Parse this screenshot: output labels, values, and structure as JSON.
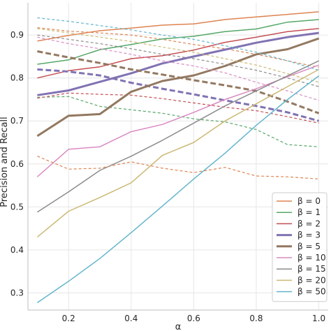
{
  "chart_data": {
    "type": "line",
    "xlabel": "α",
    "ylabel": "Precision and Recall",
    "xlim": [
      0.07,
      1.03
    ],
    "ylim": [
      0.26,
      0.975
    ],
    "xticks": [
      0.2,
      0.4,
      0.6,
      0.8,
      1.0
    ],
    "xtick_labels": [
      "0.2",
      "0.4",
      "0.6",
      "0.8",
      "1.0"
    ],
    "yticks": [
      0.3,
      0.4,
      0.5,
      0.6,
      0.7,
      0.8,
      0.9
    ],
    "ytick_labels": [
      "0.3",
      "0.4",
      "0.5",
      "0.6",
      "0.7",
      "0.8",
      "0.9"
    ],
    "grid": true,
    "legend_position": "lower-right",
    "legend_line_style": "solid",
    "x": [
      0.1,
      0.2,
      0.3,
      0.4,
      0.5,
      0.6,
      0.7,
      0.8,
      0.9,
      1.0
    ],
    "series": [
      {
        "name": "β = 0",
        "color": "#dd8452",
        "width": 1.5,
        "style": "solid",
        "values": [
          0.886,
          0.899,
          0.91,
          0.916,
          0.923,
          0.926,
          0.936,
          0.942,
          0.948,
          0.954
        ]
      },
      {
        "name": "β = 0",
        "color": "#dd8452",
        "width": 1.2,
        "style": "dashed",
        "in_legend": false,
        "values": [
          0.917,
          0.909,
          0.905,
          0.9,
          0.89,
          0.878,
          0.868,
          0.855,
          0.84,
          0.825
        ]
      },
      {
        "name": "β = 1",
        "color": "#55a868",
        "width": 1.5,
        "style": "solid",
        "values": [
          0.832,
          0.842,
          0.866,
          0.878,
          0.891,
          0.897,
          0.908,
          0.914,
          0.93,
          0.936
        ]
      },
      {
        "name": "β = 1",
        "color": "#55a868",
        "width": 1.2,
        "style": "dashed",
        "in_legend": false,
        "values": [
          0.755,
          0.757,
          0.734,
          0.726,
          0.718,
          0.705,
          0.698,
          0.68,
          0.645,
          0.64
        ]
      },
      {
        "name": "β = 2",
        "color": "#c44e52",
        "width": 1.5,
        "style": "solid",
        "values": [
          0.8,
          0.817,
          0.826,
          0.845,
          0.852,
          0.865,
          0.883,
          0.895,
          0.908,
          0.915
        ]
      },
      {
        "name": "β = 2",
        "color": "#c44e52",
        "width": 1.2,
        "style": "dashed",
        "in_legend": false,
        "values": [
          0.753,
          0.765,
          0.762,
          0.76,
          0.752,
          0.742,
          0.732,
          0.724,
          0.71,
          0.695
        ]
      },
      {
        "name": "β = 3",
        "color": "#8172b3",
        "width": 3,
        "style": "solid",
        "values": [
          0.76,
          0.771,
          0.791,
          0.811,
          0.834,
          0.85,
          0.866,
          0.882,
          0.895,
          0.905
        ]
      },
      {
        "name": "β = 3",
        "color": "#8172b3",
        "width": 3,
        "style": "dashed",
        "in_legend": false,
        "values": [
          0.82,
          0.815,
          0.806,
          0.789,
          0.775,
          0.762,
          0.748,
          0.735,
          0.72,
          0.7
        ]
      },
      {
        "name": "β = 5",
        "color": "#937860",
        "width": 3,
        "style": "solid",
        "values": [
          0.665,
          0.712,
          0.716,
          0.768,
          0.793,
          0.806,
          0.828,
          0.855,
          0.867,
          0.892
        ]
      },
      {
        "name": "β = 5",
        "color": "#937860",
        "width": 3,
        "style": "dashed",
        "in_legend": false,
        "values": [
          0.862,
          0.848,
          0.835,
          0.82,
          0.808,
          0.795,
          0.783,
          0.77,
          0.745,
          0.718
        ]
      },
      {
        "name": "β = 10",
        "color": "#da8bc3",
        "width": 1.5,
        "style": "solid",
        "values": [
          0.57,
          0.634,
          0.64,
          0.675,
          0.692,
          0.72,
          0.75,
          0.775,
          0.803,
          0.83
        ]
      },
      {
        "name": "β = 10",
        "color": "#da8bc3",
        "width": 1.2,
        "style": "dashed",
        "in_legend": false,
        "values": [
          0.895,
          0.88,
          0.868,
          0.855,
          0.84,
          0.828,
          0.812,
          0.79,
          0.77,
          0.748
        ]
      },
      {
        "name": "β = 15",
        "color": "#8c8c8c",
        "width": 1.5,
        "style": "solid",
        "values": [
          0.488,
          0.535,
          0.585,
          0.618,
          0.655,
          0.695,
          0.735,
          0.77,
          0.805,
          0.84
        ]
      },
      {
        "name": "β = 15",
        "color": "#8c8c8c",
        "width": 1.2,
        "style": "dashed",
        "in_legend": false,
        "values": [
          0.9,
          0.89,
          0.88,
          0.868,
          0.855,
          0.845,
          0.832,
          0.818,
          0.8,
          0.78
        ]
      },
      {
        "name": "β = 20",
        "color": "#ccb974",
        "width": 1.5,
        "style": "solid",
        "values": [
          0.43,
          0.49,
          0.522,
          0.556,
          0.62,
          0.65,
          0.7,
          0.74,
          0.78,
          0.82
        ]
      },
      {
        "name": "β = 20",
        "color": "#ccb974",
        "width": 1.2,
        "style": "dashed",
        "in_legend": false,
        "values": [
          0.915,
          0.905,
          0.895,
          0.885,
          0.872,
          0.86,
          0.845,
          0.83,
          0.81,
          0.79
        ]
      },
      {
        "name": "β = 50",
        "color": "#64b5cd",
        "width": 1.5,
        "style": "solid",
        "values": [
          0.277,
          0.327,
          0.38,
          0.44,
          0.502,
          0.565,
          0.625,
          0.69,
          0.75,
          0.805
        ]
      },
      {
        "name": "β = 50",
        "color": "#64b5cd",
        "width": 1.2,
        "style": "dashed",
        "in_legend": false,
        "values": [
          0.94,
          0.932,
          0.922,
          0.912,
          0.9,
          0.89,
          0.875,
          0.86,
          0.84,
          0.818
        ]
      },
      {
        "name": "",
        "color": "#dd8452",
        "width": 1.2,
        "style": "dashed",
        "in_legend": false,
        "values": [
          0.618,
          0.588,
          0.59,
          0.605,
          0.59,
          0.58,
          0.592,
          0.572,
          0.57,
          0.565
        ]
      }
    ]
  }
}
